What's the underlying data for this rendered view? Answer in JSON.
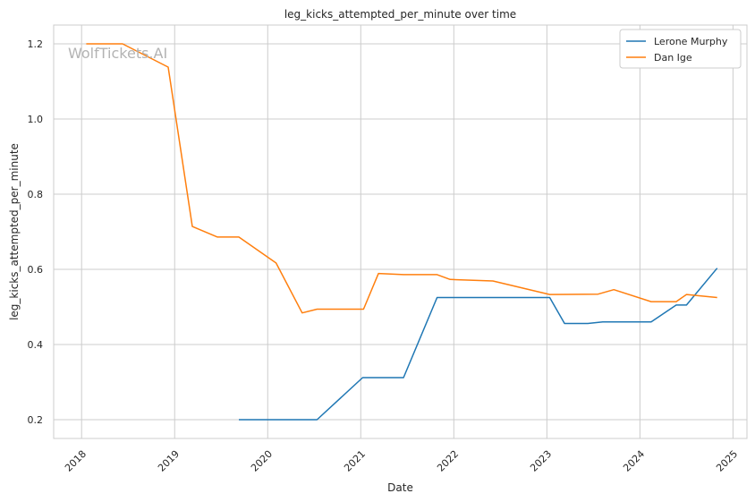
{
  "chart_data": {
    "type": "line",
    "title": "leg_kicks_attempted_per_minute over time",
    "xlabel": "Date",
    "ylabel": "leg_kicks_attempted_per_minute",
    "watermark": "WolfTickets.AI",
    "xlim": [
      2017.7,
      2025.15
    ],
    "ylim": [
      0.15,
      1.25
    ],
    "x_ticks": [
      2018,
      2019,
      2020,
      2021,
      2022,
      2023,
      2024,
      2025
    ],
    "x_tick_labels": [
      "2018",
      "2019",
      "2020",
      "2021",
      "2022",
      "2023",
      "2024",
      "2025"
    ],
    "y_ticks": [
      0.2,
      0.4,
      0.6,
      0.8,
      1.0,
      1.2
    ],
    "y_tick_labels": [
      "0.2",
      "0.4",
      "0.6",
      "0.8",
      "1.0",
      "1.2"
    ],
    "grid": true,
    "legend_position": "top-right",
    "series": [
      {
        "name": "Lerone Murphy",
        "color": "#1f77b4",
        "points": [
          [
            2019.69,
            0.2
          ],
          [
            2020.53,
            0.2
          ],
          [
            2021.02,
            0.312
          ],
          [
            2021.46,
            0.312
          ],
          [
            2021.82,
            0.525
          ],
          [
            2023.03,
            0.525
          ],
          [
            2023.19,
            0.456
          ],
          [
            2023.44,
            0.456
          ],
          [
            2023.6,
            0.46
          ],
          [
            2024.12,
            0.46
          ],
          [
            2024.39,
            0.505
          ],
          [
            2024.5,
            0.505
          ],
          [
            2024.83,
            0.603
          ]
        ]
      },
      {
        "name": "Dan Ige",
        "color": "#ff7f0e",
        "points": [
          [
            2018.05,
            1.2
          ],
          [
            2018.44,
            1.2
          ],
          [
            2018.93,
            1.138
          ],
          [
            2019.19,
            0.714
          ],
          [
            2019.46,
            0.686
          ],
          [
            2019.69,
            0.686
          ],
          [
            2020.09,
            0.617
          ],
          [
            2020.37,
            0.484
          ],
          [
            2020.53,
            0.494
          ],
          [
            2021.03,
            0.494
          ],
          [
            2021.19,
            0.589
          ],
          [
            2021.46,
            0.586
          ],
          [
            2021.82,
            0.586
          ],
          [
            2021.96,
            0.573
          ],
          [
            2022.42,
            0.569
          ],
          [
            2023.03,
            0.533
          ],
          [
            2023.55,
            0.534
          ],
          [
            2023.72,
            0.546
          ],
          [
            2024.12,
            0.514
          ],
          [
            2024.39,
            0.514
          ],
          [
            2024.5,
            0.533
          ],
          [
            2024.83,
            0.525
          ]
        ]
      }
    ]
  }
}
